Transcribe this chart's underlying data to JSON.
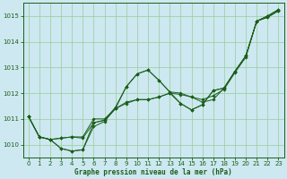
{
  "background_color": "#cde8f0",
  "grid_color": "#99cc99",
  "line_color": "#1a5e1a",
  "xlabel": "Graphe pression niveau de la mer (hPa)",
  "ylim": [
    1009.5,
    1015.5
  ],
  "xlim": [
    -0.5,
    23.5
  ],
  "yticks": [
    1010,
    1011,
    1012,
    1013,
    1014,
    1015
  ],
  "xticks": [
    0,
    1,
    2,
    3,
    4,
    5,
    6,
    7,
    8,
    9,
    10,
    11,
    12,
    13,
    14,
    15,
    16,
    17,
    18,
    19,
    20,
    21,
    22,
    23
  ],
  "series": [
    [
      1011.1,
      1010.3,
      1010.2,
      1009.85,
      1009.75,
      1009.8,
      1010.85,
      1010.95,
      1011.45,
      1012.25,
      1012.75,
      1012.9,
      1012.5,
      1012.05,
      1011.6,
      1011.35,
      1011.55,
      1012.1,
      1012.2,
      1012.85,
      1013.45,
      1014.8,
      1015.0,
      1015.25
    ],
    [
      1011.1,
      1010.3,
      1010.2,
      1009.85,
      1009.75,
      1009.8,
      1010.7,
      1010.9,
      1011.4,
      1011.6,
      1011.75,
      1011.75,
      1011.85,
      1012.0,
      1011.95,
      1011.85,
      1011.75,
      1011.9,
      1012.15,
      1012.8,
      1013.4,
      1014.8,
      1014.95,
      1015.2
    ],
    [
      1011.1,
      1010.3,
      1010.2,
      1010.25,
      1010.3,
      1010.3,
      1011.0,
      1011.0,
      1011.4,
      1012.25,
      1012.75,
      1012.9,
      1012.5,
      1012.05,
      1012.0,
      1011.85,
      1011.65,
      1011.75,
      1012.2,
      1012.85,
      1013.45,
      1014.8,
      1015.0,
      1015.25
    ],
    [
      1011.1,
      1010.3,
      1010.2,
      1010.25,
      1010.3,
      1010.25,
      1010.85,
      1010.95,
      1011.4,
      1011.65,
      1011.75,
      1011.75,
      1011.85,
      1012.0,
      1011.6,
      1011.35,
      1011.55,
      1012.1,
      1012.2,
      1012.85,
      1013.45,
      1014.8,
      1014.95,
      1015.2
    ]
  ]
}
